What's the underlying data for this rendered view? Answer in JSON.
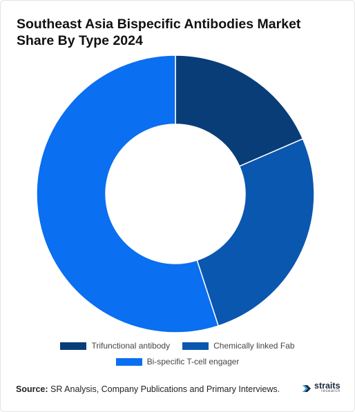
{
  "title": "Southeast Asia Bispecific Antibodies Market Share By Type 2024",
  "chart_data": {
    "type": "pie",
    "donut": true,
    "title": "Southeast Asia Bispecific Antibodies Market Share By Type 2024",
    "categories": [
      "Trifunctional antibody",
      "Chemically linked Fab",
      "Bi-specific T-cell engager"
    ],
    "values": [
      18.5,
      26.5,
      55.0
    ],
    "colors": [
      "#093d78",
      "#0a57b0",
      "#0a6ff0"
    ],
    "start": "top, clockwise",
    "legend": "bottom"
  },
  "legend": {
    "row1": [
      {
        "label": "Trifunctional antibody",
        "color": "#093d78"
      },
      {
        "label": "Chemically linked Fab",
        "color": "#0a57b0"
      }
    ],
    "row2": [
      {
        "label": "Bi-specific T-cell engager",
        "color": "#0a6ff0"
      }
    ]
  },
  "source": {
    "prefix": "Source:",
    "text": " SR Analysis, Company Publications and Primary Interviews."
  },
  "brand": {
    "name": "straits",
    "sub": "research",
    "icon": "straits-logo-icon"
  }
}
